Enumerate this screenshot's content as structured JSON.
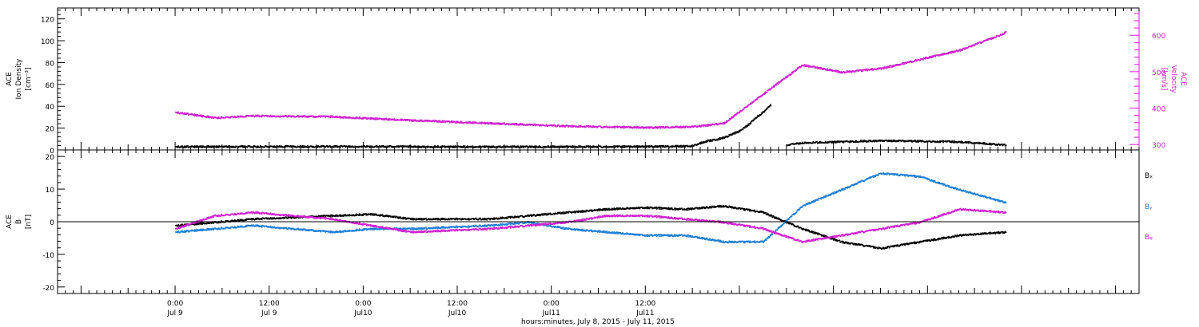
{
  "chart_data": [
    {
      "type": "scatter",
      "panel": "top",
      "left_axis": {
        "label_lines": [
          "ACE",
          "Ion Density"
        ],
        "unit": "[cm⁻³]",
        "ylim": [
          0,
          130
        ],
        "ticks": [
          0,
          20,
          40,
          60,
          80,
          100,
          120
        ],
        "color": "#000000"
      },
      "right_axis": {
        "label_lines": [
          "ACE",
          "Velocity"
        ],
        "unit": "[km/s]",
        "ylim": [
          285,
          675
        ],
        "ticks": [
          300,
          400,
          500,
          600
        ],
        "color": "#d020d0"
      },
      "series": [
        {
          "axis": "left",
          "color": "#000000",
          "x": [
            0,
            10,
            20,
            30,
            40,
            48,
            50,
            60,
            66,
            67,
            68,
            69,
            70,
            71,
            72,
            73,
            74,
            75,
            76,
            77,
            78,
            79,
            80,
            90,
            100,
            106
          ],
          "y": [
            3.5,
            3.6,
            3.7,
            3.6,
            3.4,
            3.5,
            3.5,
            3.6,
            4.0,
            7.0,
            9.0,
            10.0,
            12.0,
            15.0,
            18.0,
            23.0,
            30.0,
            35.0,
            42.0,
            null,
            5.0,
            6.0,
            7.0,
            9.0,
            8.0,
            5.0
          ]
        },
        {
          "axis": "right",
          "color": "#d020d0",
          "x": [
            0,
            5,
            10,
            20,
            30,
            40,
            50,
            60,
            66,
            70,
            75,
            80,
            85,
            90,
            95,
            100,
            105,
            106
          ],
          "y": [
            390,
            375,
            380,
            378,
            368,
            360,
            352,
            348,
            350,
            360,
            440,
            520,
            500,
            510,
            535,
            560,
            600,
            610
          ]
        }
      ]
    },
    {
      "type": "scatter",
      "panel": "bottom",
      "left_axis": {
        "label_lines": [
          "ACE",
          "B"
        ],
        "unit": "[nT]",
        "ylim": [
          -22,
          22
        ],
        "ticks": [
          -20,
          -10,
          0,
          10,
          20
        ],
        "color": "#000000"
      },
      "series": [
        {
          "name": "Bₓ",
          "color": "#000000",
          "x": [
            0,
            5,
            10,
            20,
            25,
            30,
            40,
            45,
            50,
            55,
            60,
            65,
            70,
            75,
            80,
            85,
            90,
            95,
            100,
            106
          ],
          "y": [
            -1,
            0,
            1,
            2,
            2.5,
            1,
            1,
            2,
            3,
            4,
            4.5,
            4,
            5,
            3,
            -2,
            -6,
            -8,
            -6,
            -4,
            -3
          ]
        },
        {
          "name": "Bᵧ",
          "color": "#1e7fd6",
          "x": [
            0,
            5,
            10,
            20,
            25,
            30,
            40,
            45,
            50,
            55,
            60,
            65,
            70,
            75,
            80,
            85,
            90,
            95,
            100,
            106
          ],
          "y": [
            -3,
            -2,
            -1,
            -3,
            -2,
            -2,
            -1,
            0,
            -2,
            -3,
            -4,
            -4,
            -6,
            -6,
            5,
            10,
            15,
            14,
            10,
            6
          ]
        },
        {
          "name": "Bᵩ",
          "color": "#d020d0",
          "x": [
            0,
            5,
            10,
            20,
            25,
            30,
            40,
            45,
            50,
            55,
            60,
            65,
            70,
            75,
            80,
            85,
            90,
            95,
            100,
            106
          ],
          "y": [
            -2,
            2,
            3,
            1,
            -1,
            -3,
            -2,
            -1,
            0,
            2,
            2,
            1,
            0,
            -2,
            -6,
            -4,
            -2,
            0,
            4,
            3
          ]
        }
      ],
      "zero_line": 0
    }
  ],
  "x_axis": {
    "xlim": [
      -15,
      123
    ],
    "ticks": [
      {
        "x": 0,
        "line1": "0:00",
        "line2": "Jul 9"
      },
      {
        "x": 12,
        "line1": "12:00",
        "line2": "Jul 9"
      },
      {
        "x": 24,
        "line1": "0:00",
        "line2": "Jul10"
      },
      {
        "x": 36,
        "line1": "12:00",
        "line2": "Jul10"
      },
      {
        "x": 48,
        "line1": "0:00",
        "line2": "Jul11"
      },
      {
        "x": 60,
        "line1": "12:00",
        "line2": "Jul11"
      }
    ],
    "title": "hours:minutes, July  8, 2015 - July 11, 2015"
  }
}
